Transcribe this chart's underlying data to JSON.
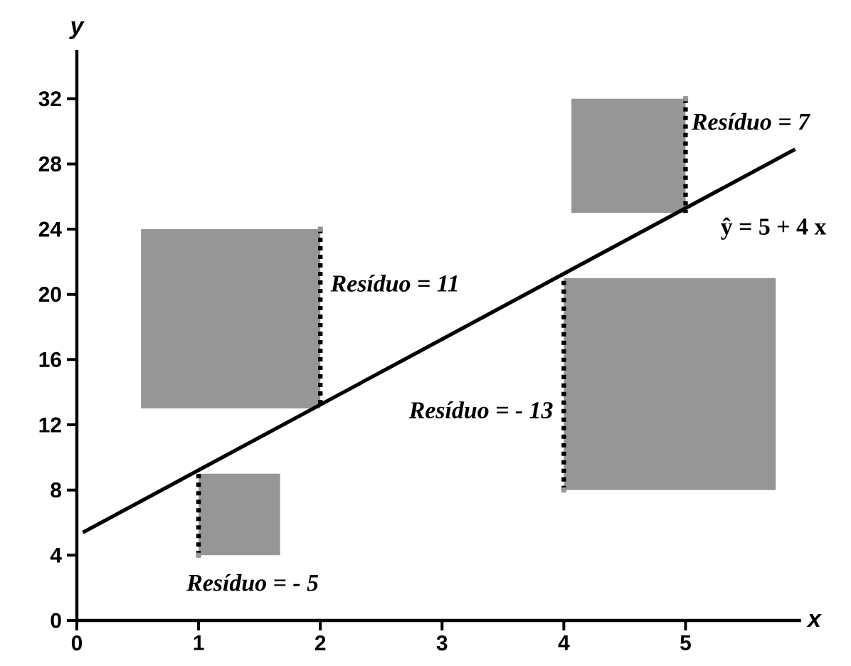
{
  "chart_data": {
    "type": "scatter",
    "xlabel": "x",
    "ylabel": "y",
    "xlim": [
      0,
      5.95
    ],
    "ylim": [
      0,
      35
    ],
    "xticks": [
      0,
      1,
      2,
      3,
      4,
      5
    ],
    "yticks": [
      0,
      4,
      8,
      12,
      16,
      20,
      24,
      28,
      32
    ],
    "grid": false,
    "series": [
      {
        "color": "#969696",
        "marker": "square",
        "x": [
          1,
          2,
          4,
          5
        ],
        "values": [
          4,
          24,
          8,
          32
        ],
        "errors": [
          [
            4,
            9
          ],
          [
            13,
            24
          ],
          [
            8,
            21
          ],
          [
            25,
            32
          ]
        ]
      },
      {
        "type": "line",
        "color": "#000000",
        "x": [
          0.05,
          5.9
        ],
        "values": [
          5.4,
          28.9
        ]
      }
    ],
    "annotations": [
      {
        "text": "*Resíduo = - 5*",
        "x": 1,
        "y": 4
      },
      {
        "text": "*Resíduo = 11*",
        "x": 2,
        "y": 24
      },
      "*Resíduo = - 13*",
      {
        "text": "*Resíduo = 7*",
        "x": 5,
        "y": 32
      },
      {
        "text": "ŷ = 5 + 4 x",
        "x": 5.5,
        "y": 27
      }
    ]
  }
}
